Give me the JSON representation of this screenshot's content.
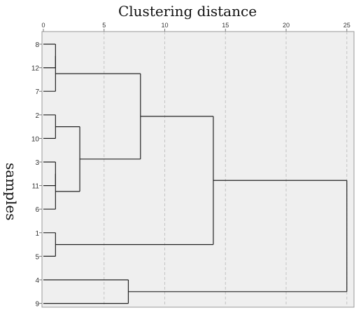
{
  "chart_data": {
    "type": "dendrogram",
    "title": "Clustering distance",
    "xlabel": "",
    "ylabel": "samples",
    "xlim": [
      0,
      26
    ],
    "x_ticks": [
      0,
      5,
      10,
      15,
      20,
      25
    ],
    "grid": true,
    "leaves": [
      "8",
      "12",
      "7",
      "2",
      "10",
      "3",
      "11",
      "6",
      "1",
      "5",
      "4",
      "9"
    ],
    "merges": [
      {
        "left": "8",
        "right": "12",
        "distance": 1
      },
      {
        "left": "8+12",
        "right": "7",
        "distance": 1
      },
      {
        "left": "2",
        "right": "10",
        "distance": 1
      },
      {
        "left": "3",
        "right": "11",
        "distance": 1
      },
      {
        "left": "3+11",
        "right": "6",
        "distance": 1
      },
      {
        "left": "1",
        "right": "5",
        "distance": 1
      },
      {
        "left": "2+10",
        "right": "3+11+6",
        "distance": 3
      },
      {
        "left": "8+12+7",
        "right": "2+10+3+11+6",
        "distance": 8
      },
      {
        "left": "8+12+7+2+10+3+11+6",
        "right": "1+5",
        "distance": 14
      },
      {
        "left": "4",
        "right": "9",
        "distance": 7
      },
      {
        "left": "8+12+7+2+10+3+11+6+1+5",
        "right": "4+9",
        "distance": 25
      }
    ]
  }
}
